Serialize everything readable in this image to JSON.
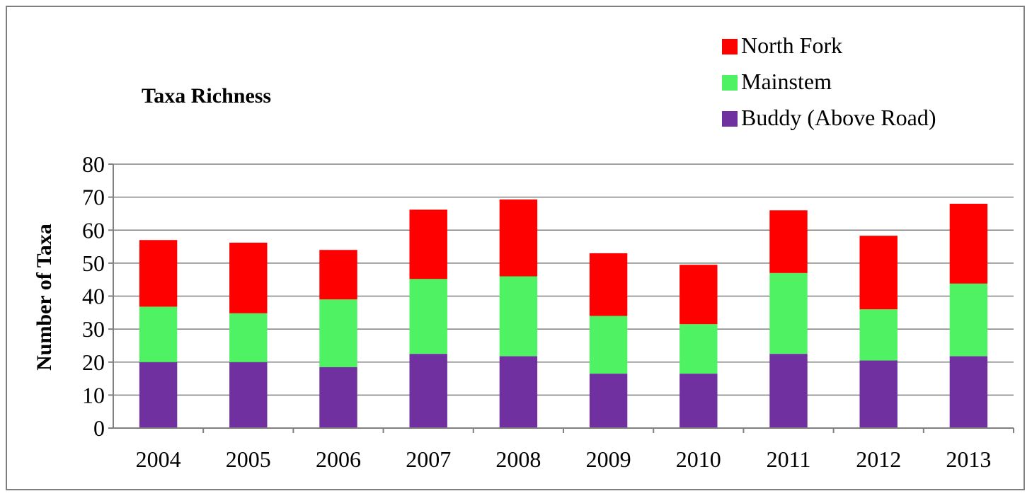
{
  "chart_data": {
    "type": "bar",
    "stacked": true,
    "title": "Taxa Richness",
    "xlabel": "",
    "ylabel": "Number of Taxa",
    "ylim": [
      0,
      80
    ],
    "yticks": [
      0,
      10,
      20,
      30,
      40,
      50,
      60,
      70,
      80
    ],
    "grid": true,
    "legend_position": "top-right",
    "categories": [
      "2004",
      "2005",
      "2006",
      "2007",
      "2008",
      "2009",
      "2010",
      "2011",
      "2012",
      "2013"
    ],
    "series": [
      {
        "name": "Buddy (Above Road)",
        "color": "#7030a0",
        "values": [
          20,
          20,
          18.5,
          22.5,
          21.8,
          16.5,
          16.5,
          22.5,
          20.5,
          21.8
        ]
      },
      {
        "name": "Mainstem",
        "color": "#4ef263",
        "values": [
          16.8,
          14.8,
          20.5,
          22.7,
          24.2,
          17.5,
          15,
          24.5,
          15.5,
          22
        ]
      },
      {
        "name": "North Fork",
        "color": "#ff0000",
        "values": [
          20.2,
          21.4,
          15,
          21,
          23.3,
          19,
          18,
          19,
          22.3,
          24.2
        ]
      }
    ],
    "legend_order": [
      "North Fork",
      "Mainstem",
      "Buddy (Above Road)"
    ]
  }
}
